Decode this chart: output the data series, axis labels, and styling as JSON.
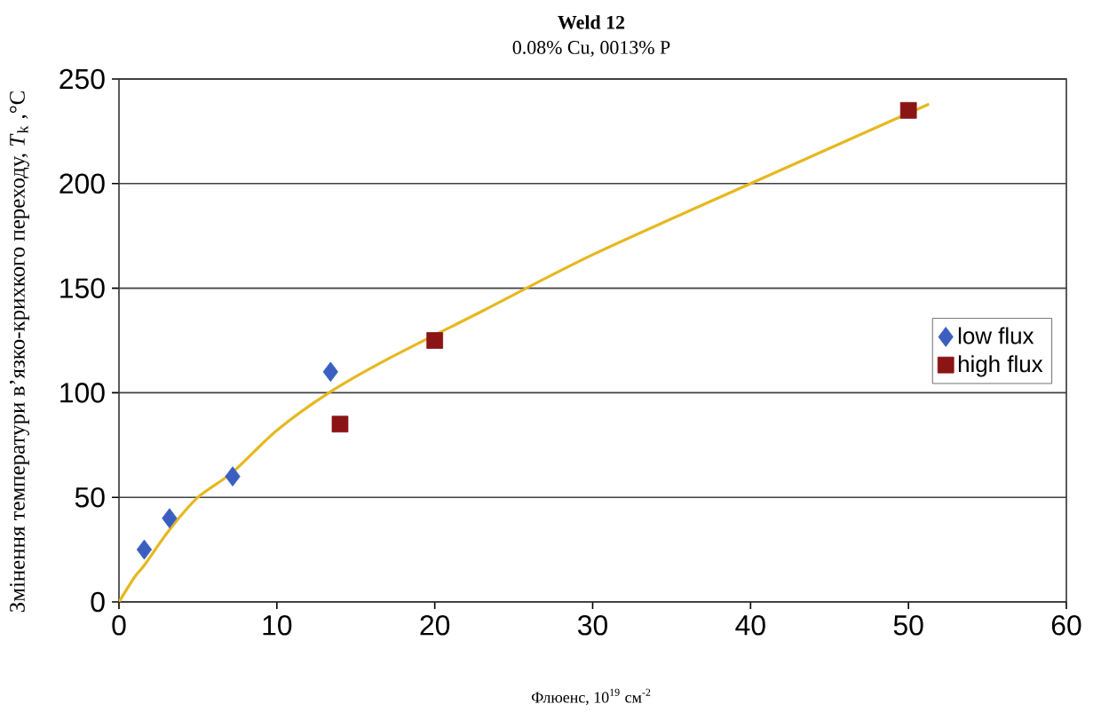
{
  "chart_data": {
    "type": "scatter",
    "title": "Weld 12",
    "subtitle": "0.08% Cu, 0013% P",
    "xlabel": "Флюенс, 10$^{19}$ см$^{-2}$",
    "ylabel": "Змінення температури в’язко-крихкого переходу, *T*$_{k}$ ,°C",
    "xlim": [
      0,
      60
    ],
    "ylim": [
      0,
      250
    ],
    "xticks": [
      0,
      10,
      20,
      30,
      40,
      50,
      60
    ],
    "yticks": [
      0,
      50,
      100,
      150,
      200,
      250
    ],
    "grid": "y",
    "legend": "right",
    "series": [
      {
        "name": "low flux",
        "marker": "diamond",
        "color": "#3a5fc0",
        "x": [
          1.6,
          3.2,
          7.2,
          13.4
        ],
        "values": [
          25,
          40,
          60,
          110
        ]
      },
      {
        "name": "high flux",
        "marker": "square",
        "color": "#8b1414",
        "x": [
          14,
          20,
          50
        ],
        "values": [
          85,
          125,
          235
        ]
      },
      {
        "type": "line",
        "marker": "none",
        "color": "#e6b820",
        "x": [
          0,
          1,
          1.6,
          3.2,
          5,
          7.2,
          10,
          13.3,
          17,
          23,
          30,
          40,
          51.3
        ],
        "values": [
          0,
          12,
          17.5,
          34.5,
          50,
          62,
          82,
          100,
          116,
          139,
          166,
          200,
          238
        ]
      }
    ]
  }
}
